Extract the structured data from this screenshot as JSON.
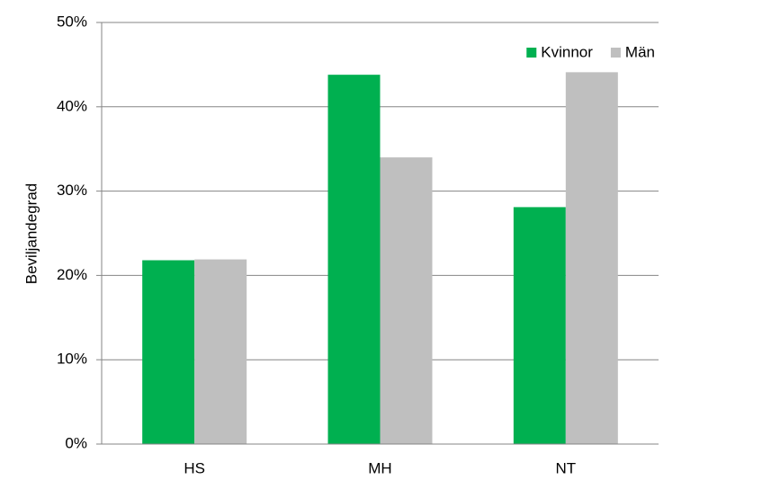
{
  "chart_data": {
    "type": "bar",
    "ylabel": "Beviljandegrad",
    "categories": [
      "HS",
      "MH",
      "NT"
    ],
    "series": [
      {
        "name": "Kvinnor",
        "color": "#00b050",
        "values": [
          21.8,
          43.8,
          28.1
        ]
      },
      {
        "name": "Män",
        "color": "#bfbfbf",
        "values": [
          21.9,
          34.0,
          44.1
        ]
      }
    ],
    "ylim": [
      0,
      50
    ],
    "yticks": [
      {
        "value": 0,
        "label": "0%"
      },
      {
        "value": 10,
        "label": "10%"
      },
      {
        "value": 20,
        "label": "20%"
      },
      {
        "value": 30,
        "label": "30%"
      },
      {
        "value": 40,
        "label": "40%"
      },
      {
        "value": 50,
        "label": "50%"
      }
    ],
    "grid": true,
    "legend": "upper right"
  }
}
